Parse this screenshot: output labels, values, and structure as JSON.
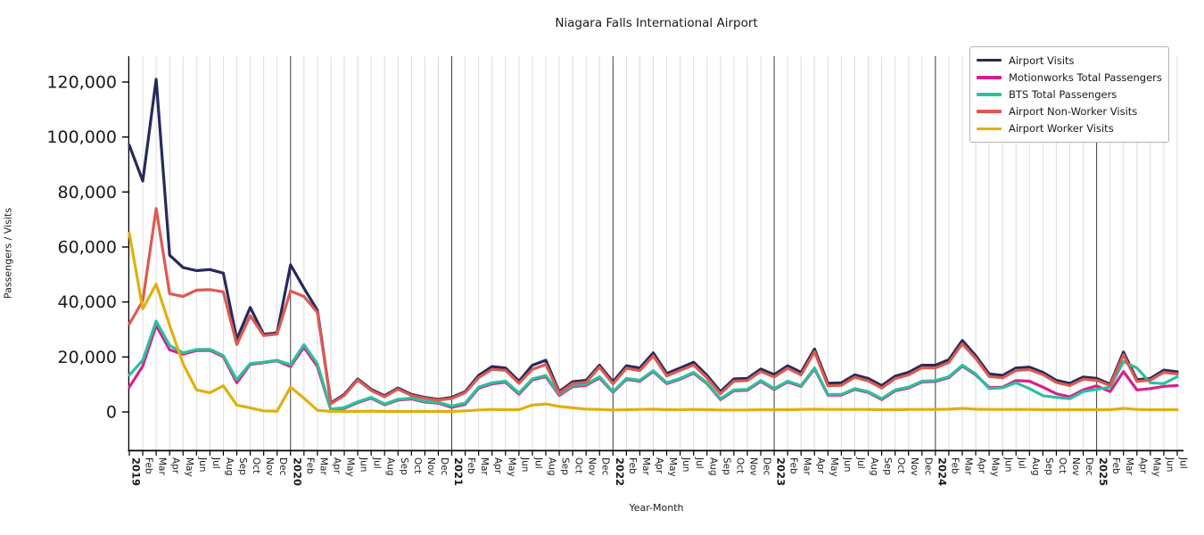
{
  "title": "Niagara Falls International Airport",
  "xlabel": "Year-Month",
  "ylabel": "Passengers / Visits",
  "colors": {
    "background": "#ffffff",
    "grid": "#dcdcdc",
    "year_line": "#3c3c3c",
    "axis": "#000000",
    "text": "#1a1a1a",
    "legend_border": "#b3b3b3"
  },
  "chart_data": {
    "type": "line",
    "x_range": [
      "2019-01",
      "2025-07"
    ],
    "grid": "light vertical gridline per month, dark vertical line at each year boundary",
    "legend_position": "upper right",
    "y_ticks": {
      "values": [
        0,
        20000,
        40000,
        60000,
        80000,
        100000,
        120000
      ],
      "labels": [
        "0",
        "20,000",
        "40,000",
        "60,000",
        "80,000",
        "100,000",
        "120,000"
      ]
    },
    "x_tick_labels": [
      "2019",
      "Feb",
      "Mar",
      "Apr",
      "May",
      "Jun",
      "Jul",
      "Aug",
      "Sep",
      "Oct",
      "Nov",
      "Dec",
      "2020",
      "Feb",
      "Mar",
      "Apr",
      "May",
      "Jun",
      "Jul",
      "Aug",
      "Sep",
      "Oct",
      "Nov",
      "Dec",
      "2021",
      "Feb",
      "Mar",
      "Apr",
      "May",
      "Jun",
      "Jul",
      "Aug",
      "Sep",
      "Oct",
      "Nov",
      "Dec",
      "2022",
      "Feb",
      "Mar",
      "Apr",
      "May",
      "Jun",
      "Jul",
      "Aug",
      "Sep",
      "Oct",
      "Nov",
      "Dec",
      "2023",
      "Feb",
      "Mar",
      "Apr",
      "May",
      "Jun",
      "Jul",
      "Aug",
      "Sep",
      "Oct",
      "Nov",
      "Dec",
      "2024",
      "Feb",
      "Mar",
      "Apr",
      "May",
      "Jun",
      "Jul",
      "Aug",
      "Sep",
      "Oct",
      "Nov",
      "Dec",
      "2025",
      "Feb",
      "Mar",
      "Apr",
      "May",
      "Jun",
      "Jul"
    ],
    "series": [
      {
        "name": "Airport Visits",
        "color": "#262a5b",
        "values": [
          97000,
          84000,
          121000,
          57000,
          52500,
          51400,
          51800,
          50500,
          26500,
          38000,
          28200,
          28800,
          53500,
          45000,
          37000,
          3300,
          6400,
          12000,
          8200,
          5900,
          8700,
          6400,
          5300,
          4600,
          5300,
          7400,
          13300,
          16500,
          16000,
          11200,
          17000,
          18800,
          7400,
          11000,
          11500,
          17000,
          11000,
          16800,
          16000,
          21500,
          14000,
          16000,
          18100,
          13300,
          7400,
          12000,
          12200,
          15600,
          13600,
          16800,
          14400,
          22900,
          10400,
          10600,
          13500,
          12200,
          9600,
          13000,
          14400,
          17000,
          17000,
          19000,
          26000,
          20500,
          13800,
          13300,
          16000,
          16300,
          14400,
          11500,
          10400,
          12700,
          12200,
          10100,
          21800,
          11700,
          12200,
          15200,
          14600
        ]
      },
      {
        "name": "Motionworks Total Passengers",
        "color": "#d6218f",
        "values": [
          9000,
          16700,
          31500,
          22600,
          21000,
          22300,
          22400,
          20100,
          10600,
          17300,
          17900,
          18600,
          16500,
          23500,
          16500,
          700,
          1300,
          3400,
          5000,
          2600,
          4300,
          4700,
          3600,
          3200,
          1700,
          2800,
          8600,
          10200,
          10800,
          6500,
          11600,
          12900,
          6000,
          9200,
          9700,
          12400,
          7100,
          11900,
          11200,
          14700,
          10300,
          11900,
          14100,
          10300,
          4500,
          7700,
          7900,
          11100,
          8200,
          10900,
          9300,
          15700,
          6100,
          6100,
          8200,
          7100,
          4500,
          7700,
          8700,
          10900,
          11100,
          12500,
          16700,
          13500,
          8900,
          9000,
          11400,
          11200,
          9000,
          6600,
          5500,
          8000,
          9500,
          7400,
          14700,
          8000,
          8500,
          9300,
          9600
        ]
      },
      {
        "name": "BTS Total Passengers",
        "color": "#2cc09d",
        "values": [
          13400,
          18800,
          33000,
          24200,
          21500,
          22700,
          22800,
          20500,
          11700,
          17600,
          18100,
          18800,
          17200,
          24500,
          17500,
          1000,
          1600,
          3700,
          5300,
          2900,
          4600,
          5000,
          3900,
          3500,
          2100,
          3200,
          9000,
          10600,
          11200,
          6900,
          12000,
          13300,
          6400,
          9600,
          10100,
          12800,
          7400,
          12200,
          11500,
          15000,
          10600,
          12200,
          14400,
          10600,
          4800,
          8000,
          8200,
          11400,
          8500,
          11200,
          9600,
          16000,
          6400,
          6400,
          8500,
          7400,
          4800,
          8000,
          9000,
          11200,
          11400,
          12800,
          17000,
          13800,
          8500,
          8800,
          10600,
          8500,
          5900,
          5300,
          4800,
          7400,
          8200,
          9000,
          18300,
          16000,
          10600,
          10300,
          12800
        ]
      },
      {
        "name": "Airport Non-Worker Visits",
        "color": "#dc5a52",
        "values": [
          32000,
          40400,
          74000,
          43000,
          42000,
          44300,
          44500,
          43700,
          24500,
          35000,
          27800,
          28300,
          44000,
          42000,
          36200,
          3000,
          6000,
          11600,
          7800,
          5500,
          8300,
          6000,
          5000,
          4300,
          4900,
          7000,
          12500,
          15500,
          15100,
          10400,
          15500,
          17300,
          6800,
          10300,
          10800,
          16300,
          10200,
          15900,
          15000,
          20400,
          13100,
          15100,
          17100,
          12400,
          6600,
          11200,
          11400,
          14700,
          12700,
          15900,
          13500,
          21900,
          9500,
          9700,
          12600,
          11300,
          8700,
          12100,
          13500,
          16100,
          16000,
          18000,
          24800,
          19500,
          12900,
          12400,
          15100,
          15400,
          13600,
          10700,
          9600,
          11900,
          11500,
          9600,
          20800,
          11100,
          11600,
          14400,
          13800
        ]
      },
      {
        "name": "Airport Worker Visits",
        "color": "#e0b00d",
        "values": [
          65000,
          37500,
          46500,
          31500,
          17500,
          8000,
          7000,
          9500,
          2500,
          1500,
          400,
          300,
          9000,
          5000,
          600,
          200,
          200,
          200,
          300,
          200,
          200,
          200,
          200,
          200,
          200,
          400,
          700,
          900,
          800,
          800,
          2500,
          2900,
          2000,
          1500,
          1000,
          900,
          700,
          800,
          900,
          1000,
          800,
          800,
          900,
          800,
          700,
          700,
          700,
          800,
          800,
          800,
          900,
          1000,
          900,
          900,
          900,
          900,
          800,
          800,
          900,
          900,
          900,
          1000,
          1300,
          1000,
          900,
          900,
          900,
          900,
          800,
          800,
          800,
          800,
          800,
          800,
          1300,
          900,
          800,
          800,
          800
        ]
      }
    ]
  }
}
